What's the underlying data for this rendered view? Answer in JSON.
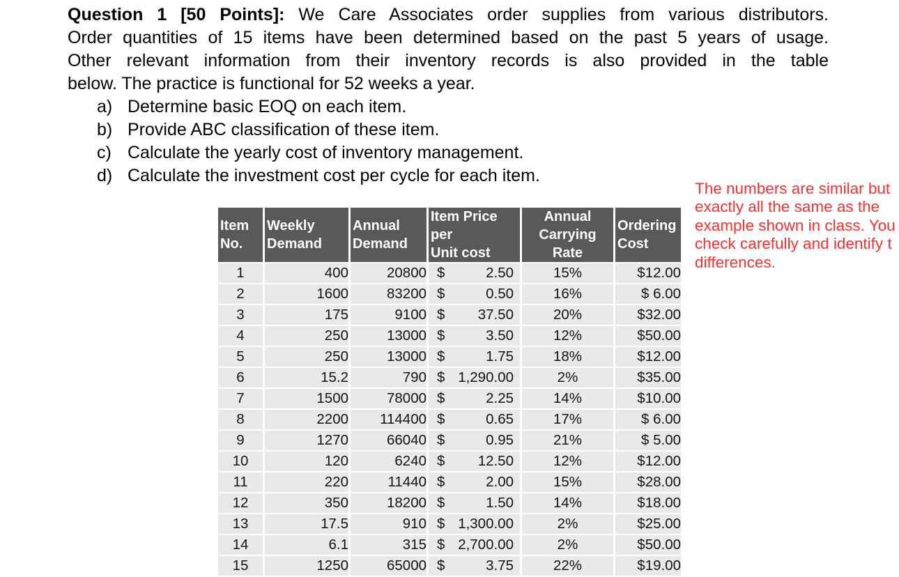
{
  "colors": {
    "note_red": "#fa3232",
    "table_header_bg": "#595959",
    "table_row_bg": "#e9e9e9"
  },
  "question": {
    "title_bold": "Question 1 [50 Points]:",
    "line1_rest": " We Care Associates order supplies from various distributors.",
    "line2": "Order quantities of 15 items have been determined based on the past 5 years of usage.",
    "line3": "Other relevant information from their inventory records is also provided in the table",
    "line4": "below. The practice is functional for 52 weeks a year.",
    "subitems": [
      {
        "marker": "a)",
        "text": "Determine basic EOQ on each item."
      },
      {
        "marker": "b)",
        "text": "Provide ABC classification of these item."
      },
      {
        "marker": "c)",
        "text": "Calculate the yearly cost of inventory management."
      },
      {
        "marker": "d)",
        "text": "Calculate the investment cost per cycle for each item."
      }
    ]
  },
  "note": {
    "lines": [
      "The numbers are similar but",
      "exactly all the same as the",
      "example shown in class. You",
      "check carefully and identify t",
      "differences."
    ]
  },
  "table": {
    "currency_symbol": "$",
    "columns": [
      {
        "lines": [
          "Item",
          "No."
        ]
      },
      {
        "lines": [
          "Weekly",
          "Demand"
        ]
      },
      {
        "lines": [
          "Annual",
          "Demand"
        ]
      },
      {
        "lines": [
          "Item Price per",
          "Unit cost"
        ]
      },
      {
        "lines": [
          "Annual",
          "Carrying Rate"
        ]
      },
      {
        "lines": [
          "Ordering",
          "Cost"
        ]
      }
    ],
    "rows": [
      {
        "item": "1",
        "weekly": "400",
        "annual": "20800",
        "price": "2.50",
        "rate": "15%",
        "ordering": "$12.00"
      },
      {
        "item": "2",
        "weekly": "1600",
        "annual": "83200",
        "price": "0.50",
        "rate": "16%",
        "ordering": "$ 6.00"
      },
      {
        "item": "3",
        "weekly": "175",
        "annual": "9100",
        "price": "37.50",
        "rate": "20%",
        "ordering": "$32.00"
      },
      {
        "item": "4",
        "weekly": "250",
        "annual": "13000",
        "price": "3.50",
        "rate": "12%",
        "ordering": "$50.00"
      },
      {
        "item": "5",
        "weekly": "250",
        "annual": "13000",
        "price": "1.75",
        "rate": "18%",
        "ordering": "$12.00"
      },
      {
        "item": "6",
        "weekly": "15.2",
        "annual": "790",
        "price": "1,290.00",
        "rate": "2%",
        "ordering": "$35.00"
      },
      {
        "item": "7",
        "weekly": "1500",
        "annual": "78000",
        "price": "2.25",
        "rate": "14%",
        "ordering": "$10.00"
      },
      {
        "item": "8",
        "weekly": "2200",
        "annual": "114400",
        "price": "0.65",
        "rate": "17%",
        "ordering": "$ 6.00"
      },
      {
        "item": "9",
        "weekly": "1270",
        "annual": "66040",
        "price": "0.95",
        "rate": "21%",
        "ordering": "$ 5.00"
      },
      {
        "item": "10",
        "weekly": "120",
        "annual": "6240",
        "price": "12.50",
        "rate": "12%",
        "ordering": "$12.00"
      },
      {
        "item": "11",
        "weekly": "220",
        "annual": "11440",
        "price": "2.00",
        "rate": "15%",
        "ordering": "$28.00"
      },
      {
        "item": "12",
        "weekly": "350",
        "annual": "18200",
        "price": "1.50",
        "rate": "14%",
        "ordering": "$18.00"
      },
      {
        "item": "13",
        "weekly": "17.5",
        "annual": "910",
        "price": "1,300.00",
        "rate": "2%",
        "ordering": "$25.00"
      },
      {
        "item": "14",
        "weekly": "6.1",
        "annual": "315",
        "price": "2,700.00",
        "rate": "2%",
        "ordering": "$50.00"
      },
      {
        "item": "15",
        "weekly": "1250",
        "annual": "65000",
        "price": "3.75",
        "rate": "22%",
        "ordering": "$19.00"
      }
    ]
  }
}
